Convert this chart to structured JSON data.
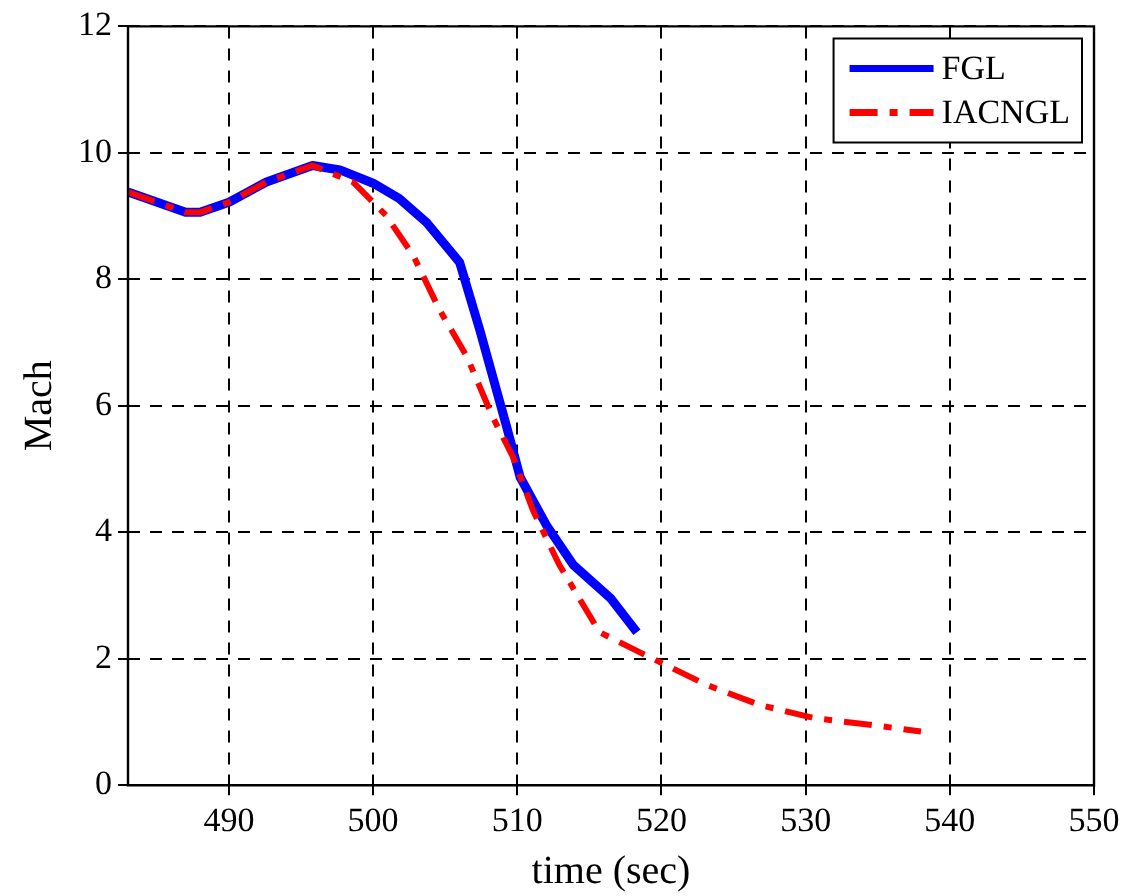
{
  "chart_data": {
    "type": "line",
    "xlabel": "time (sec)",
    "ylabel": "Mach",
    "xlim": [
      483,
      550
    ],
    "xticks": [
      490,
      500,
      510,
      520,
      530,
      540,
      550
    ],
    "ylim": [
      0,
      12
    ],
    "yticks": [
      0,
      2,
      4,
      6,
      8,
      10,
      12
    ],
    "grid": true,
    "legend": "top right",
    "marker": "none",
    "series": [
      {
        "name": "FGL",
        "color": "#0000ff",
        "line_style": "solid",
        "x": [
          483,
          487,
          488,
          490,
          492.6,
          495.8,
          497.7,
          500,
          501.8,
          503.7,
          506,
          507.4,
          509.2,
          510.2,
          512,
          513.9,
          516.5,
          518.3
        ],
        "values": [
          9.38,
          9.06,
          9.06,
          9.22,
          9.54,
          9.8,
          9.73,
          9.52,
          9.28,
          8.9,
          8.27,
          7.2,
          5.72,
          4.87,
          4.12,
          3.48,
          2.95,
          2.42
        ]
      },
      {
        "name": "IACNGL",
        "color": "#ff0000",
        "line_style": "dashed",
        "x": [
          483,
          487,
          488,
          490,
          492.6,
          495.8,
          498.6,
          500.9,
          502.8,
          504.6,
          506.5,
          508.3,
          509.7,
          511.1,
          512.9,
          515.7,
          519.4,
          523.1,
          526.8,
          530.6,
          534.3,
          538
        ],
        "values": [
          9.38,
          9.06,
          9.06,
          9.22,
          9.54,
          9.8,
          9.54,
          9.01,
          8.37,
          7.52,
          6.78,
          5.82,
          5.19,
          4.34,
          3.49,
          2.42,
          2.0,
          1.59,
          1.27,
          1.06,
          0.96,
          0.85
        ]
      }
    ]
  }
}
